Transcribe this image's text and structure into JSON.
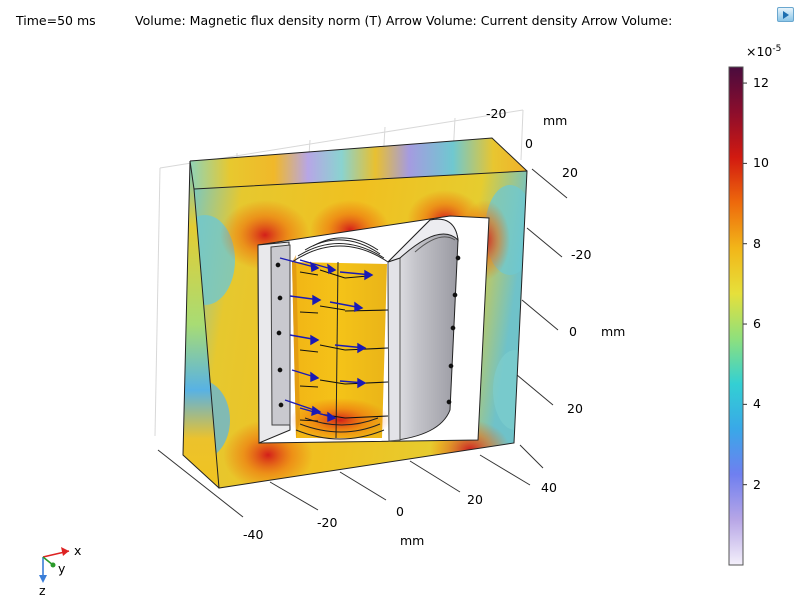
{
  "header": {
    "time": "Time=50 ms",
    "plot_title": "Volume: Magnetic flux density norm (T)  Arrow Volume: Current density  Arrow Volume:"
  },
  "colorbar": {
    "multiplier": "×10",
    "exponent": "-5",
    "ticks": [
      {
        "label": "12",
        "value": 12
      },
      {
        "label": "10",
        "value": 10
      },
      {
        "label": "8",
        "value": 8
      },
      {
        "label": "6",
        "value": 6
      },
      {
        "label": "4",
        "value": 4
      },
      {
        "label": "2",
        "value": 2
      }
    ],
    "range": [
      0,
      12.4
    ],
    "colormap": [
      "#f4f0fb",
      "#b7a6e6",
      "#6f7ff0",
      "#39a8e8",
      "#33d0d3",
      "#8fe07c",
      "#e6e03b",
      "#f2b619",
      "#ee6a0c",
      "#d21a10",
      "#8c0d2c",
      "#4a0c3e"
    ]
  },
  "axes": {
    "x_ticks": [
      "-40",
      "-20",
      "0",
      "20",
      "40"
    ],
    "x_unit": "mm",
    "y_ticks": [
      "-20",
      "0",
      "20"
    ],
    "y_unit": "mm",
    "z_ticks": [
      "-20",
      "0",
      "20"
    ],
    "z_unit": "mm"
  },
  "triad": {
    "x": "x",
    "y": "y",
    "z": "z"
  },
  "toolbar": {
    "icon": "play-icon"
  }
}
